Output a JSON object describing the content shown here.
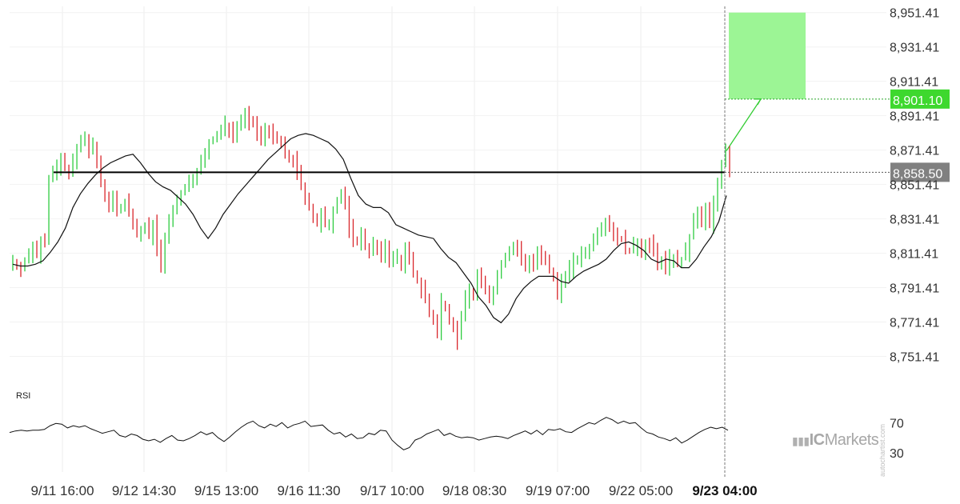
{
  "chart_data": {
    "type": "candlestick",
    "price_axis": {
      "ticks": [
        "8,951.41",
        "8,931.41",
        "8,911.41",
        "8,891.41",
        "8,871.41",
        "8,851.41",
        "8,831.41",
        "8,811.41",
        "8,791.41",
        "8,771.41",
        "8,751.41"
      ],
      "tick_values": [
        8951.41,
        8931.41,
        8911.41,
        8891.41,
        8871.41,
        8851.41,
        8831.41,
        8811.41,
        8791.41,
        8771.41,
        8751.41
      ],
      "ylim": [
        8740,
        8955
      ]
    },
    "time_axis": {
      "ticks": [
        "9/11 16:00",
        "9/12 14:30",
        "9/15 13:00",
        "9/16 11:30",
        "9/17 10:00",
        "9/18 08:30",
        "9/19 07:00",
        "9/22 05:00",
        "9/23 04:00"
      ],
      "highlighted_tick": "9/23 04:00"
    },
    "support_level": {
      "value": 8858.5,
      "label": "8,858.50",
      "color": "#000000"
    },
    "target": {
      "value": 8901.1,
      "label": "8,901.10",
      "color": "#3ed82e"
    },
    "current_price_badge_color": "#808080",
    "up_color": "#2ecc40",
    "down_color": "#d9262b",
    "close_series": [
      8807,
      8805,
      8803,
      8806,
      8810,
      8816,
      8812,
      8820,
      8818,
      8855,
      8858,
      8860,
      8866,
      8862,
      8860,
      8864,
      8871,
      8876,
      8879,
      8871,
      8873,
      8864,
      8853,
      8846,
      8840,
      8842,
      8837,
      8839,
      8841,
      8835,
      8828,
      8822,
      8824,
      8826,
      8822,
      8829,
      8815,
      8802,
      8822,
      8829,
      8836,
      8842,
      8846,
      8850,
      8853,
      8856,
      8860,
      8864,
      8868,
      8875,
      8878,
      8880,
      8883,
      8886,
      8884,
      8881,
      8885,
      8889,
      8891,
      8887,
      8886,
      8881,
      8879,
      8884,
      8881,
      8879,
      8877,
      8875,
      8870,
      8866,
      8866,
      8858,
      8850,
      8845,
      8838,
      8832,
      8828,
      8833,
      8828,
      8829,
      8837,
      8843,
      8846,
      8839,
      8826,
      8820,
      8818,
      8822,
      8816,
      8814,
      8816,
      8812,
      8810,
      8817,
      8806,
      8808,
      8810,
      8804,
      8813,
      8808,
      8800,
      8795,
      8791,
      8786,
      8776,
      8772,
      8764,
      8784,
      8781,
      8774,
      8768,
      8761,
      8776,
      8784,
      8790,
      8788,
      8798,
      8795,
      8792,
      8784,
      8791,
      8798,
      8806,
      8810,
      8814,
      8815,
      8813,
      8807,
      8803,
      8808,
      8806,
      8812,
      8809,
      8806,
      8801,
      8796,
      8787,
      8796,
      8800,
      8803,
      8806,
      8808,
      8810,
      8812,
      8815,
      8819,
      8825,
      8828,
      8831,
      8826,
      8823,
      8821,
      8819,
      8815,
      8813,
      8815,
      8818,
      8811,
      8818,
      8816,
      8812,
      8806,
      8808,
      8803,
      8808,
      8809,
      8806,
      8807,
      8812,
      8820,
      8830,
      8834,
      8829,
      8836,
      8830,
      8840,
      8852,
      8864,
      8873,
      8858
    ],
    "ma_series": [
      8805,
      8804,
      8804,
      8805,
      8807,
      8812,
      8818,
      8826,
      8838,
      8846,
      8852,
      8857,
      8861,
      8864,
      8866,
      8868,
      8869,
      8864,
      8858,
      8853,
      8850,
      8848,
      8844,
      8840,
      8834,
      8826,
      8820,
      8826,
      8834,
      8840,
      8846,
      8851,
      8856,
      8861,
      8866,
      8870,
      8874,
      8878,
      8880,
      8881,
      8880,
      8878,
      8876,
      8872,
      8866,
      8855,
      8845,
      8840,
      8838,
      8838,
      8835,
      8828,
      8826,
      8824,
      8822,
      8821,
      8820,
      8814,
      8809,
      8806,
      8800,
      8794,
      8786,
      8781,
      8774,
      8771,
      8776,
      8785,
      8791,
      8795,
      8798,
      8798,
      8798,
      8795,
      8794,
      8798,
      8801,
      8803,
      8805,
      8808,
      8813,
      8817,
      8818,
      8816,
      8813,
      8808,
      8806,
      8808,
      8807,
      8803,
      8803,
      8808,
      8815,
      8821,
      8830,
      8845
    ],
    "rsi": {
      "label": "RSI",
      "levels": [
        70,
        30
      ],
      "ylim": [
        10,
        100
      ],
      "values": [
        57,
        59,
        60,
        59,
        60,
        60,
        61,
        66,
        69,
        68,
        63,
        66,
        64,
        66,
        62,
        59,
        56,
        58,
        60,
        53,
        51,
        55,
        53,
        48,
        46,
        48,
        44,
        49,
        53,
        47,
        46,
        49,
        53,
        58,
        54,
        57,
        50,
        45,
        51,
        58,
        64,
        69,
        72,
        66,
        63,
        68,
        65,
        70,
        63,
        67,
        69,
        72,
        65,
        66,
        67,
        60,
        55,
        57,
        51,
        55,
        49,
        50,
        56,
        54,
        60,
        59,
        47,
        40,
        34,
        37,
        47,
        50,
        55,
        58,
        61,
        53,
        56,
        52,
        50,
        51,
        50,
        47,
        49,
        51,
        52,
        51,
        49,
        53,
        56,
        59,
        55,
        60,
        54,
        61,
        60,
        62,
        58,
        57,
        62,
        66,
        70,
        68,
        73,
        77,
        74,
        69,
        72,
        69,
        70,
        63,
        57,
        55,
        51,
        49,
        46,
        50,
        43,
        47,
        52,
        57,
        61,
        64,
        62,
        64,
        60
      ]
    }
  },
  "panel_label_rsi": "RSI",
  "brand": {
    "prefix": "IC",
    "suffix": "Markets"
  },
  "watermark": "autochartist.com"
}
